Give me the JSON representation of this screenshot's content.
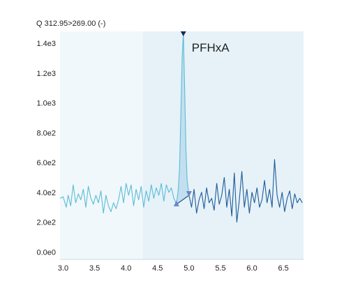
{
  "chart_data": {
    "type": "line",
    "title": "Q 312.95>269.00 (-)",
    "xlabel": "",
    "ylabel": "",
    "xlim": [
      2.95,
      6.82
    ],
    "ylim": [
      -50,
      1480
    ],
    "x_ticks": [
      "3.0",
      "3.5",
      "4.0",
      "4.5",
      "5.0",
      "5.5",
      "6.0",
      "6.5"
    ],
    "x_tick_values": [
      3.0,
      3.5,
      4.0,
      4.5,
      5.0,
      5.5,
      6.0,
      6.5
    ],
    "y_ticks": [
      "0.0e0",
      "2.0e2",
      "4.0e2",
      "6.0e2",
      "8.0e2",
      "1.0e3",
      "1.2e3",
      "1.4e3"
    ],
    "y_tick_values": [
      0,
      200,
      400,
      600,
      800,
      1000,
      1200,
      1400
    ],
    "peak": {
      "label": "PFHxA",
      "apex_rt": 4.91,
      "apex_intensity": 1470,
      "start_rt": 4.8,
      "end_rt": 5.0
    },
    "colors": {
      "light_trace": "#5bbcd6",
      "dark_trace": "#1e5a9a",
      "peak_fill": "#a6d0e8",
      "bg_light": "#f1f8fb",
      "bg_mid": "#e6f2f8",
      "marker": "#6a86c2",
      "apex_marker": "#1a2a55"
    },
    "series": [
      {
        "segment": "light",
        "x": [
          2.95,
          3.0,
          3.05,
          3.08,
          3.12,
          3.16,
          3.2,
          3.24,
          3.28,
          3.32,
          3.36,
          3.4,
          3.44,
          3.48,
          3.52,
          3.56,
          3.6,
          3.64,
          3.68,
          3.72,
          3.76,
          3.8,
          3.84,
          3.88,
          3.92,
          3.96,
          4.0,
          4.04,
          4.08,
          4.12,
          4.16,
          4.2,
          4.24,
          4.28,
          4.32,
          4.36,
          4.4,
          4.44,
          4.48,
          4.52,
          4.56,
          4.6,
          4.64,
          4.68,
          4.72,
          4.76,
          4.8
        ],
        "values": [
          360,
          370,
          300,
          380,
          310,
          450,
          330,
          390,
          350,
          420,
          300,
          440,
          360,
          320,
          380,
          330,
          410,
          260,
          380,
          310,
          270,
          330,
          290,
          350,
          440,
          330,
          460,
          380,
          450,
          310,
          420,
          350,
          440,
          300,
          410,
          340,
          450,
          360,
          430,
          380,
          460,
          340,
          450,
          400,
          430,
          360,
          320
        ]
      },
      {
        "segment": "peak",
        "x": [
          4.8,
          4.83,
          4.85,
          4.87,
          4.89,
          4.91,
          4.93,
          4.95,
          4.97,
          5.0
        ],
        "values": [
          320,
          420,
          560,
          900,
          1300,
          1470,
          1100,
          700,
          480,
          380
        ]
      },
      {
        "segment": "dark",
        "x": [
          5.0,
          5.04,
          5.08,
          5.12,
          5.16,
          5.2,
          5.24,
          5.28,
          5.32,
          5.36,
          5.4,
          5.44,
          5.48,
          5.52,
          5.56,
          5.6,
          5.64,
          5.68,
          5.72,
          5.76,
          5.8,
          5.84,
          5.88,
          5.92,
          5.96,
          6.0,
          6.04,
          6.08,
          6.12,
          6.16,
          6.2,
          6.24,
          6.28,
          6.32,
          6.36,
          6.4,
          6.44,
          6.48,
          6.52,
          6.56,
          6.6,
          6.64,
          6.68,
          6.72,
          6.76,
          6.8
        ],
        "values": [
          380,
          300,
          420,
          260,
          350,
          400,
          290,
          430,
          330,
          360,
          280,
          460,
          320,
          380,
          500,
          300,
          420,
          240,
          530,
          200,
          350,
          540,
          300,
          420,
          260,
          400,
          330,
          430,
          300,
          350,
          480,
          330,
          420,
          300,
          620,
          380,
          300,
          400,
          270,
          360,
          410,
          290,
          390,
          330,
          360,
          330
        ]
      }
    ]
  }
}
